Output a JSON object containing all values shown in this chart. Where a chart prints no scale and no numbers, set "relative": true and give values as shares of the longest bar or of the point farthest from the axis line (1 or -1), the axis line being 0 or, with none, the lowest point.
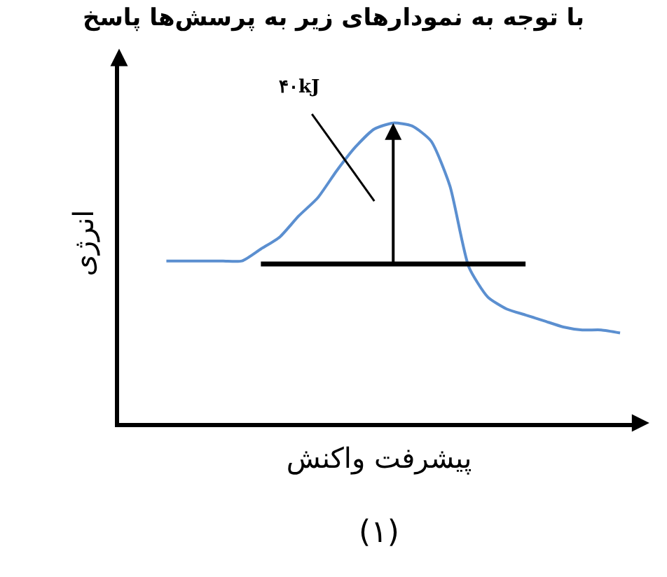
{
  "chart_data": {
    "type": "line",
    "relative": true,
    "title": "با توجه به نمودارهای زیر به پرسش‌ها پاسخ",
    "xlabel": "پیشرفت واکنش",
    "ylabel": "انرژی",
    "annotations": [
      "۴۰kJ",
      "(۱)"
    ],
    "categories": [
      null,
      null,
      null,
      null,
      null,
      null,
      null,
      null,
      null,
      null,
      null,
      null,
      null,
      null,
      null,
      null,
      null,
      null,
      null,
      null,
      null,
      null,
      null,
      null,
      null
    ],
    "series": [
      {
        "color": "#5b8fd0",
        "values": [
          0.54,
          0.54,
          0.54,
          0.54,
          0.54,
          0.58,
          0.62,
          0.69,
          0.75,
          0.84,
          0.92,
          0.98,
          1,
          0.99,
          0.94,
          0.79,
          0.52,
          0.42,
          0.38,
          0.36,
          0.34,
          0.32,
          0.31,
          0.31,
          0.3
        ]
      },
      {
        "color": "#000000",
        "values": [
          null,
          null,
          null,
          null,
          null,
          0.53,
          0.53,
          0.53,
          0.53,
          0.53,
          0.53,
          0.53,
          0.53,
          0.53,
          0.53,
          0.53,
          0.53,
          0.53,
          0.53,
          0.53,
          null,
          null,
          null,
          null,
          null
        ]
      }
    ],
    "marker": "none",
    "line_style": "solid"
  }
}
